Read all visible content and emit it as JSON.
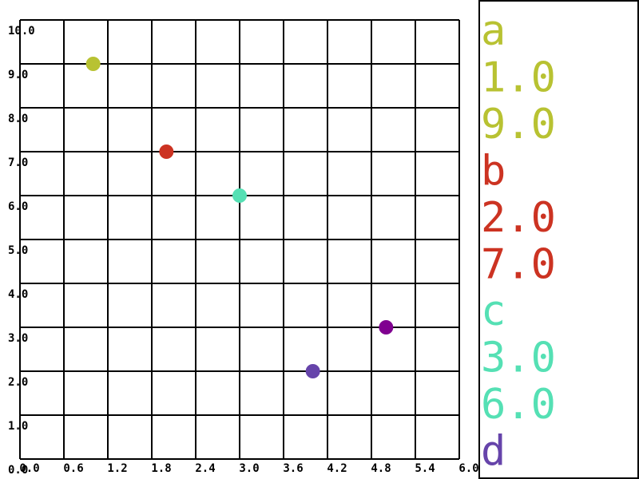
{
  "chart_data": {
    "type": "scatter",
    "xlim": [
      0,
      6
    ],
    "ylim": [
      0,
      10
    ],
    "xticks": [
      {
        "value": 0,
        "label": "0.0"
      },
      {
        "value": 0.6,
        "label": "0.6"
      },
      {
        "value": 1.2,
        "label": "1.2"
      },
      {
        "value": 1.8,
        "label": "1.8"
      },
      {
        "value": 2.4,
        "label": "2.4"
      },
      {
        "value": 3.0,
        "label": "3.0"
      },
      {
        "value": 3.6,
        "label": "3.6"
      },
      {
        "value": 4.2,
        "label": "4.2"
      },
      {
        "value": 4.8,
        "label": "4.8"
      },
      {
        "value": 5.4,
        "label": "5.4"
      },
      {
        "value": 6.0,
        "label": "6.0"
      }
    ],
    "yticks": [
      {
        "value": 0,
        "label": "0.0"
      },
      {
        "value": 1,
        "label": "1.0"
      },
      {
        "value": 2,
        "label": "2.0"
      },
      {
        "value": 3,
        "label": "3.0"
      },
      {
        "value": 4,
        "label": "4.0"
      },
      {
        "value": 5,
        "label": "5.0"
      },
      {
        "value": 6,
        "label": "6.0"
      },
      {
        "value": 7,
        "label": "7.0"
      },
      {
        "value": 8,
        "label": "8.0"
      },
      {
        "value": 9,
        "label": "9.0"
      },
      {
        "value": 10,
        "label": "10.0"
      }
    ],
    "grid": true,
    "series": [
      {
        "name": "a",
        "color": "#b8c232",
        "x": [
          1.0
        ],
        "values": [
          9.0
        ],
        "x_labels": [
          "1.0"
        ],
        "value_labels": [
          "9.0"
        ]
      },
      {
        "name": "b",
        "color": "#cc3322",
        "x": [
          2.0
        ],
        "values": [
          7.0
        ],
        "x_labels": [
          "2.0"
        ],
        "value_labels": [
          "7.0"
        ]
      },
      {
        "name": "c",
        "color": "#55e0b4",
        "x": [
          3.0
        ],
        "values": [
          6.0
        ],
        "x_labels": [
          "3.0"
        ],
        "value_labels": [
          "6.0"
        ]
      },
      {
        "name": "d",
        "color": "#6644aa",
        "x": [
          4.0
        ],
        "values": [
          2.0
        ]
      },
      {
        "color": "#800090",
        "x": [
          5.0
        ],
        "values": [
          3.0
        ]
      }
    ]
  }
}
